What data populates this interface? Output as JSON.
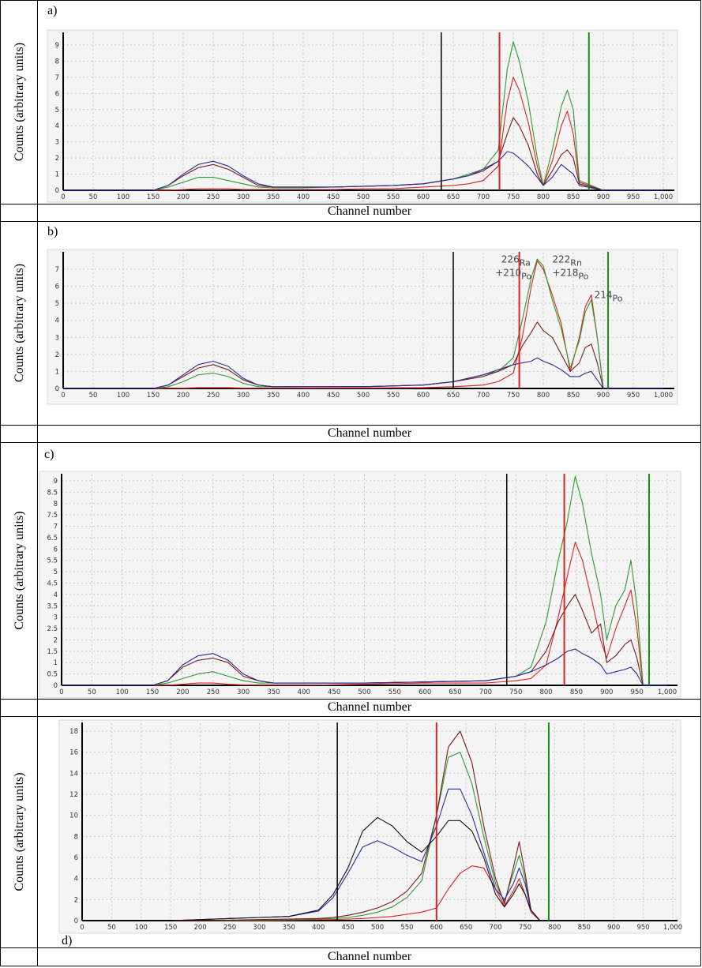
{
  "chart_data": [
    {
      "panel": "a)",
      "type": "line",
      "xlabel": "Channel number",
      "ylabel": "Counts (arbitrary units)",
      "xlim": [
        0,
        1030
      ],
      "ylim": [
        0,
        9.7
      ],
      "grid": true,
      "xticks": [
        "0",
        "50",
        "100",
        "150",
        "200",
        "250",
        "300",
        "350",
        "400",
        "450",
        "500",
        "550",
        "600",
        "650",
        "700",
        "750",
        "800",
        "850",
        "900",
        "950",
        "1,000"
      ],
      "yticks": [
        "0",
        "1",
        "2",
        "3",
        "4",
        "5",
        "6",
        "7",
        "8",
        "9"
      ],
      "markers": [
        {
          "color": "#000000",
          "x": 630
        },
        {
          "color": "#e02020",
          "x": 727
        },
        {
          "color": "#1a8a1a",
          "x": 876
        }
      ],
      "x": [
        0,
        150,
        175,
        200,
        225,
        250,
        275,
        300,
        325,
        350,
        400,
        450,
        500,
        550,
        600,
        650,
        675,
        700,
        725,
        740,
        750,
        760,
        775,
        790,
        800,
        815,
        830,
        840,
        850,
        860,
        900,
        1000
      ],
      "series": [
        {
          "color": "#e02020",
          "values": [
            0,
            0,
            0,
            0.05,
            0.1,
            0.1,
            0.1,
            0.05,
            0.05,
            0.05,
            0.05,
            0.05,
            0.1,
            0.1,
            0.2,
            0.3,
            0.4,
            0.6,
            1.5,
            5.5,
            7.0,
            6.2,
            4.2,
            1.5,
            0.3,
            1.8,
            4.0,
            4.9,
            3.5,
            0.5,
            0,
            0
          ]
        },
        {
          "color": "#2e9a2e",
          "values": [
            0,
            0,
            0.2,
            0.5,
            0.8,
            0.8,
            0.6,
            0.4,
            0.2,
            0.15,
            0.15,
            0.2,
            0.25,
            0.3,
            0.4,
            0.7,
            1.0,
            1.3,
            2.5,
            7.5,
            9.2,
            8.0,
            5.5,
            2.0,
            0.3,
            2.5,
            5.2,
            6.2,
            5.0,
            0.6,
            0,
            0
          ]
        },
        {
          "color": "#7a1a1a",
          "values": [
            0,
            0,
            0.3,
            0.9,
            1.4,
            1.6,
            1.3,
            0.8,
            0.3,
            0.2,
            0.2,
            0.2,
            0.25,
            0.3,
            0.4,
            0.7,
            0.9,
            1.2,
            1.8,
            3.5,
            4.5,
            4.0,
            2.8,
            1.0,
            0.3,
            1.2,
            2.2,
            2.5,
            2.0,
            0.4,
            0,
            0
          ]
        },
        {
          "color": "#2a2a9a",
          "values": [
            0,
            0,
            0.3,
            1.0,
            1.6,
            1.8,
            1.5,
            0.9,
            0.4,
            0.2,
            0.2,
            0.2,
            0.25,
            0.3,
            0.4,
            0.7,
            0.9,
            1.3,
            1.8,
            2.4,
            2.3,
            2.0,
            1.5,
            0.8,
            0.3,
            0.8,
            1.6,
            1.3,
            1.0,
            0.3,
            0,
            0
          ]
        }
      ]
    },
    {
      "panel": "b)",
      "type": "line",
      "xlabel": "Channel number",
      "ylabel": "Counts (arbitrary units)",
      "xlim": [
        0,
        1030
      ],
      "ylim": [
        0,
        7.8
      ],
      "grid": true,
      "xticks": [
        "0",
        "50",
        "100",
        "150",
        "200",
        "250",
        "300",
        "350",
        "400",
        "450",
        "500",
        "550",
        "600",
        "650",
        "700",
        "750",
        "800",
        "850",
        "900",
        "950",
        "1,000"
      ],
      "yticks": [
        "0",
        "1",
        "2",
        "3",
        "4",
        "5",
        "6",
        "7"
      ],
      "markers": [
        {
          "color": "#000000",
          "x": 650
        },
        {
          "color": "#e02020",
          "x": 760
        },
        {
          "color": "#1a8a1a",
          "x": 908
        }
      ],
      "annotations": [
        {
          "mass": "226",
          "el": "Ra",
          "x": 730,
          "y": 7.4
        },
        {
          "mass": "+210",
          "el": "Po",
          "x": 720,
          "y": 6.6
        },
        {
          "mass": "222",
          "el": "Rn",
          "x": 815,
          "y": 7.4
        },
        {
          "mass": "+218",
          "el": "Po",
          "x": 815,
          "y": 6.6
        },
        {
          "mass": "214",
          "el": "Po",
          "x": 885,
          "y": 5.3
        }
      ],
      "x": [
        0,
        150,
        175,
        200,
        225,
        250,
        275,
        300,
        325,
        350,
        400,
        500,
        600,
        650,
        700,
        725,
        750,
        765,
        780,
        790,
        800,
        815,
        830,
        845,
        860,
        870,
        880,
        890,
        900,
        950,
        1000
      ],
      "series": [
        {
          "color": "#e02020",
          "values": [
            0,
            0,
            0,
            0.02,
            0.05,
            0.05,
            0.05,
            0.02,
            0,
            0,
            0.02,
            0.03,
            0.05,
            0.1,
            0.2,
            0.4,
            0.9,
            3.0,
            6.0,
            7.5,
            7.0,
            5.5,
            3.8,
            1.0,
            3.0,
            4.8,
            5.5,
            3.0,
            0,
            0,
            0
          ]
        },
        {
          "color": "#2e9a2e",
          "values": [
            0,
            0,
            0.1,
            0.4,
            0.8,
            0.9,
            0.7,
            0.3,
            0.1,
            0.1,
            0.1,
            0.1,
            0.2,
            0.4,
            0.8,
            1.0,
            1.8,
            4.0,
            6.5,
            7.6,
            7.2,
            5.2,
            3.5,
            1.2,
            2.8,
            4.5,
            5.2,
            3.0,
            0,
            0,
            0
          ]
        },
        {
          "color": "#7a1a1a",
          "values": [
            0,
            0,
            0.2,
            0.7,
            1.2,
            1.4,
            1.1,
            0.5,
            0.2,
            0.1,
            0.1,
            0.1,
            0.2,
            0.4,
            0.7,
            1.0,
            1.4,
            2.5,
            3.3,
            3.9,
            3.4,
            3.0,
            2.0,
            1.0,
            1.5,
            2.4,
            2.6,
            1.5,
            0,
            0,
            0
          ]
        },
        {
          "color": "#2a2a9a",
          "values": [
            0,
            0,
            0.2,
            0.8,
            1.4,
            1.6,
            1.3,
            0.6,
            0.2,
            0.1,
            0.1,
            0.1,
            0.2,
            0.4,
            0.8,
            1.1,
            1.4,
            1.5,
            1.6,
            1.8,
            1.6,
            1.4,
            1.1,
            0.7,
            0.7,
            0.9,
            1.0,
            0.5,
            0,
            0,
            0
          ]
        }
      ]
    },
    {
      "panel": "c)",
      "type": "line",
      "xlabel": "Channel number",
      "ylabel": "Counts (arbitrary units)",
      "xlim": [
        0,
        1030
      ],
      "ylim": [
        0,
        9.4
      ],
      "grid": true,
      "xticks": [
        "0",
        "50",
        "100",
        "150",
        "200",
        "250",
        "300",
        "350",
        "400",
        "450",
        "500",
        "550",
        "600",
        "650",
        "700",
        "750",
        "800",
        "850",
        "900",
        "950",
        "1,000"
      ],
      "yticks": [
        "0",
        "0.5",
        "1",
        "1.5",
        "2",
        "2.5",
        "3",
        "3.5",
        "4",
        "4.5",
        "5",
        "5.5",
        "6",
        "6.5",
        "7",
        "7.5",
        "8",
        "8.5",
        "9"
      ],
      "markers": [
        {
          "color": "#000000",
          "x": 735
        },
        {
          "color": "#e02020",
          "x": 830
        },
        {
          "color": "#1a8a1a",
          "x": 970
        }
      ],
      "x": [
        0,
        150,
        175,
        200,
        225,
        250,
        275,
        300,
        325,
        350,
        400,
        500,
        600,
        700,
        750,
        775,
        800,
        820,
        835,
        848,
        860,
        875,
        890,
        900,
        915,
        930,
        940,
        950,
        960,
        1000
      ],
      "series": [
        {
          "color": "#e02020",
          "values": [
            0,
            0,
            0,
            0.05,
            0.1,
            0.1,
            0.05,
            0.02,
            0,
            0,
            0,
            0.05,
            0.1,
            0.1,
            0.2,
            0.3,
            0.9,
            3.0,
            4.8,
            6.3,
            5.5,
            3.8,
            2.0,
            1.2,
            2.5,
            3.5,
            4.2,
            2.5,
            0,
            0
          ]
        },
        {
          "color": "#2e9a2e",
          "values": [
            0,
            0,
            0.1,
            0.3,
            0.5,
            0.6,
            0.4,
            0.2,
            0.1,
            0.1,
            0.1,
            0.1,
            0.15,
            0.2,
            0.4,
            0.8,
            2.8,
            5.5,
            7.2,
            9.2,
            8.0,
            5.8,
            4.0,
            2.0,
            3.5,
            4.2,
            5.5,
            3.5,
            0,
            0
          ]
        },
        {
          "color": "#7a1a1a",
          "values": [
            0,
            0,
            0.2,
            0.8,
            1.1,
            1.2,
            1.0,
            0.4,
            0.2,
            0.1,
            0.1,
            0.1,
            0.15,
            0.2,
            0.4,
            0.6,
            1.5,
            2.8,
            3.5,
            4.0,
            3.3,
            2.3,
            2.7,
            1.0,
            1.3,
            1.8,
            2.0,
            1.2,
            0,
            0
          ]
        },
        {
          "color": "#2a2a9a",
          "values": [
            0,
            0,
            0.2,
            0.9,
            1.3,
            1.4,
            1.1,
            0.5,
            0.2,
            0.1,
            0.1,
            0.1,
            0.15,
            0.2,
            0.4,
            0.6,
            0.9,
            1.2,
            1.5,
            1.6,
            1.4,
            1.2,
            0.9,
            0.5,
            0.6,
            0.7,
            0.8,
            0.5,
            0,
            0
          ]
        }
      ]
    },
    {
      "panel": "d)",
      "type": "line",
      "xlabel": "Channel number",
      "ylabel": "Counts (arbitrary units)",
      "xlim": [
        0,
        1030
      ],
      "ylim": [
        0,
        18.8
      ],
      "grid": true,
      "xticks": [
        "0",
        "50",
        "100",
        "150",
        "200",
        "250",
        "300",
        "350",
        "400",
        "450",
        "500",
        "550",
        "600",
        "650",
        "700",
        "750",
        "800",
        "850",
        "900",
        "950",
        "1,000"
      ],
      "yticks": [
        "0",
        "2",
        "4",
        "6",
        "8",
        "10",
        "12",
        "14",
        "16",
        "18"
      ],
      "markers": [
        {
          "color": "#000000",
          "x": 432
        },
        {
          "color": "#e02020",
          "x": 600
        },
        {
          "color": "#1a8a1a",
          "x": 790
        }
      ],
      "x": [
        0,
        150,
        200,
        250,
        300,
        350,
        400,
        425,
        450,
        475,
        500,
        525,
        550,
        575,
        600,
        620,
        640,
        660,
        680,
        700,
        715,
        730,
        740,
        750,
        760,
        775,
        800,
        1000
      ],
      "series": [
        {
          "color": "#e02020",
          "values": [
            0,
            0,
            0,
            0,
            0,
            0.05,
            0.1,
            0.1,
            0.15,
            0.2,
            0.3,
            0.4,
            0.6,
            0.8,
            1.2,
            3.0,
            4.5,
            5.2,
            5.0,
            3.0,
            1.4,
            2.8,
            4.0,
            2.5,
            0.8,
            0,
            0,
            0
          ]
        },
        {
          "color": "#2e9a2e",
          "values": [
            0,
            0,
            0,
            0,
            0.05,
            0.1,
            0.15,
            0.2,
            0.3,
            0.5,
            0.8,
            1.3,
            2.2,
            3.8,
            10.0,
            15.5,
            16.0,
            13.0,
            8.0,
            3.5,
            1.8,
            4.5,
            6.2,
            4.0,
            1.0,
            0,
            0,
            0
          ]
        },
        {
          "color": "#7a1a1a",
          "values": [
            0,
            0,
            0,
            0.05,
            0.1,
            0.15,
            0.2,
            0.3,
            0.5,
            0.8,
            1.2,
            1.8,
            2.8,
            4.5,
            10.0,
            16.5,
            18.0,
            15.0,
            9.0,
            4.0,
            1.6,
            5.0,
            7.5,
            4.5,
            1.0,
            0,
            0,
            0
          ]
        },
        {
          "color": "#2a2aaa",
          "values": [
            0,
            0,
            0.1,
            0.2,
            0.3,
            0.4,
            0.9,
            2.2,
            4.5,
            7.0,
            7.6,
            7.0,
            6.2,
            5.6,
            9.0,
            12.5,
            12.5,
            10.0,
            6.5,
            3.0,
            2.0,
            3.5,
            5.0,
            3.5,
            1.0,
            0,
            0,
            0
          ]
        },
        {
          "color": "#111111",
          "values": [
            0,
            0,
            0.1,
            0.2,
            0.3,
            0.4,
            1.0,
            2.5,
            5.0,
            8.5,
            9.8,
            9.0,
            7.5,
            6.5,
            8.0,
            9.5,
            9.5,
            8.5,
            6.0,
            2.5,
            1.3,
            2.5,
            3.5,
            2.5,
            1.0,
            0,
            0,
            0
          ]
        }
      ]
    }
  ]
}
